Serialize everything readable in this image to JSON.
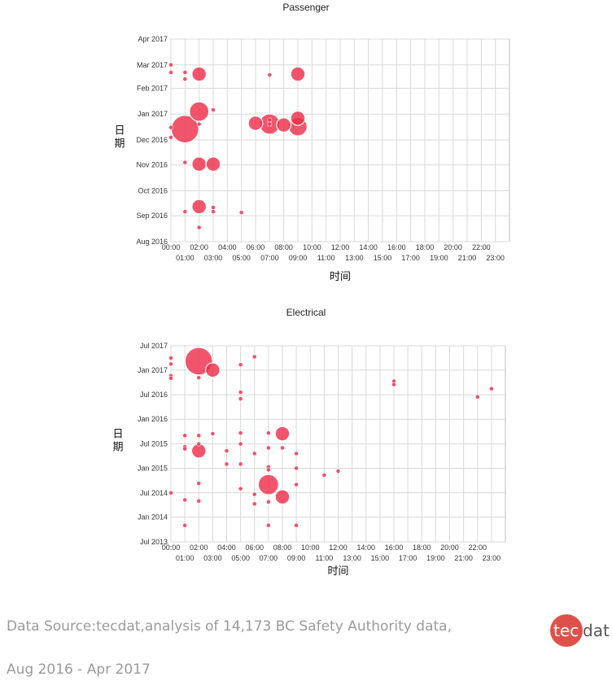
{
  "chart_data": [
    {
      "type": "scatter",
      "title": "Passenger",
      "xlabel": "时间",
      "ylabel": "日期",
      "x_ticks": [
        "00:00",
        "01:00",
        "02:00",
        "03:00",
        "04:00",
        "05:00",
        "06:00",
        "07:00",
        "08:00",
        "09:00",
        "10:00",
        "11:00",
        "12:00",
        "13:00",
        "14:00",
        "15:00",
        "16:00",
        "17:00",
        "18:00",
        "19:00",
        "20:00",
        "21:00",
        "22:00",
        "23:00"
      ],
      "y_ticks": [
        "Aug 2016",
        "Sep 2016",
        "Oct 2016",
        "Nov 2016",
        "Dec 2016",
        "Jan 2017",
        "Feb 2017",
        "Mar 2017",
        "Apr 2017"
      ],
      "xlim": [
        0,
        24
      ],
      "ylim": [
        "Aug 2016",
        "Apr 2017"
      ],
      "grid": true,
      "color": "#ee2f4a",
      "points": [
        {
          "x": 0.0,
          "y": "2017-03-01",
          "size": 1
        },
        {
          "x": 0.0,
          "y": "2017-02-20",
          "size": 1
        },
        {
          "x": 1.0,
          "y": "2017-02-20",
          "size": 1
        },
        {
          "x": 1.0,
          "y": "2017-02-12",
          "size": 1
        },
        {
          "x": 2.0,
          "y": "2017-02-18",
          "size": 6
        },
        {
          "x": 7.0,
          "y": "2017-02-17",
          "size": 1
        },
        {
          "x": 9.0,
          "y": "2017-02-18",
          "size": 6
        },
        {
          "x": 2.0,
          "y": "2017-01-04",
          "size": 11
        },
        {
          "x": 3.0,
          "y": "2017-01-06",
          "size": 1
        },
        {
          "x": 2.0,
          "y": "2016-12-20",
          "size": 1
        },
        {
          "x": 1.0,
          "y": "2016-12-14",
          "size": 22
        },
        {
          "x": 0.0,
          "y": "2016-12-16",
          "size": 1
        },
        {
          "x": 0.0,
          "y": "2016-12-04",
          "size": 1
        },
        {
          "x": 6.0,
          "y": "2016-12-21",
          "size": 6
        },
        {
          "x": 7.0,
          "y": "2016-12-20",
          "size": 12
        },
        {
          "x": 7.0,
          "y": "2016-12-25",
          "size": 1
        },
        {
          "x": 7.0,
          "y": "2016-12-20",
          "size": 1
        },
        {
          "x": 8.0,
          "y": "2016-12-19",
          "size": 6
        },
        {
          "x": 9.0,
          "y": "2016-12-27",
          "size": 6
        },
        {
          "x": 9.0,
          "y": "2016-12-17",
          "size": 10
        },
        {
          "x": 1.0,
          "y": "2016-11-04",
          "size": 1
        },
        {
          "x": 2.0,
          "y": "2016-11-02",
          "size": 6
        },
        {
          "x": 3.0,
          "y": "2016-11-02",
          "size": 6
        },
        {
          "x": 1.0,
          "y": "2016-09-06",
          "size": 1
        },
        {
          "x": 2.0,
          "y": "2016-09-12",
          "size": 6
        },
        {
          "x": 3.0,
          "y": "2016-09-11",
          "size": 1
        },
        {
          "x": 3.0,
          "y": "2016-09-06",
          "size": 1
        },
        {
          "x": 5.0,
          "y": "2016-09-05",
          "size": 1
        },
        {
          "x": 2.0,
          "y": "2016-08-18",
          "size": 1
        }
      ]
    },
    {
      "type": "scatter",
      "title": "Electrical",
      "xlabel": "时间",
      "ylabel": "日期",
      "x_ticks": [
        "00:00",
        "01:00",
        "02:00",
        "03:00",
        "04:00",
        "05:00",
        "06:00",
        "07:00",
        "08:00",
        "09:00",
        "10:00",
        "11:00",
        "12:00",
        "13:00",
        "14:00",
        "15:00",
        "16:00",
        "17:00",
        "18:00",
        "19:00",
        "20:00",
        "21:00",
        "22:00",
        "23:00"
      ],
      "y_ticks": [
        "Jul 2013",
        "Jan 2014",
        "Jul 2014",
        "Jan 2015",
        "Jul 2015",
        "Jan 2016",
        "Jul 2016",
        "Jan 2017",
        "Jul 2017"
      ],
      "xlim": [
        0,
        24
      ],
      "ylim": [
        "Jul 2013",
        "Jul 2017"
      ],
      "grid": true,
      "color": "#ee2f4a",
      "points": [
        {
          "x": 2.0,
          "y": "2017-03-08",
          "size": 22
        },
        {
          "x": 3.0,
          "y": "2017-01-01",
          "size": 6
        },
        {
          "x": 0.0,
          "y": "2017-04-01",
          "size": 1
        },
        {
          "x": 0.0,
          "y": "2017-02-15",
          "size": 1
        },
        {
          "x": 0.0,
          "y": "2016-11-20",
          "size": 1
        },
        {
          "x": 0.0,
          "y": "2016-11-01",
          "size": 1
        },
        {
          "x": 2.0,
          "y": "2016-11-05",
          "size": 1
        },
        {
          "x": 5.0,
          "y": "2017-02-10",
          "size": 1
        },
        {
          "x": 6.0,
          "y": "2017-04-10",
          "size": 1
        },
        {
          "x": 16.0,
          "y": "2016-10-10",
          "size": 1
        },
        {
          "x": 16.0,
          "y": "2016-09-15",
          "size": 1
        },
        {
          "x": 22.0,
          "y": "2016-06-15",
          "size": 1
        },
        {
          "x": 23.0,
          "y": "2016-08-15",
          "size": 1
        },
        {
          "x": 5.0,
          "y": "2016-07-20",
          "size": 1
        },
        {
          "x": 5.0,
          "y": "2016-06-01",
          "size": 1
        },
        {
          "x": 1.0,
          "y": "2015-09-01",
          "size": 1
        },
        {
          "x": 2.0,
          "y": "2015-09-01",
          "size": 1
        },
        {
          "x": 3.0,
          "y": "2015-09-15",
          "size": 1
        },
        {
          "x": 5.0,
          "y": "2015-09-20",
          "size": 1
        },
        {
          "x": 7.0,
          "y": "2015-09-20",
          "size": 1
        },
        {
          "x": 8.0,
          "y": "2015-09-15",
          "size": 6
        },
        {
          "x": 1.0,
          "y": "2015-06-10",
          "size": 1
        },
        {
          "x": 1.0,
          "y": "2015-05-25",
          "size": 1
        },
        {
          "x": 2.0,
          "y": "2015-07-01",
          "size": 1
        },
        {
          "x": 2.0,
          "y": "2015-05-10",
          "size": 6
        },
        {
          "x": 5.0,
          "y": "2015-07-01",
          "size": 1
        },
        {
          "x": 4.0,
          "y": "2015-05-10",
          "size": 1
        },
        {
          "x": 6.0,
          "y": "2015-04-20",
          "size": 1
        },
        {
          "x": 7.0,
          "y": "2015-06-01",
          "size": 1
        },
        {
          "x": 8.0,
          "y": "2015-06-01",
          "size": 1
        },
        {
          "x": 9.0,
          "y": "2015-04-20",
          "size": 1
        },
        {
          "x": 4.0,
          "y": "2015-02-01",
          "size": 1
        },
        {
          "x": 5.0,
          "y": "2015-02-01",
          "size": 1
        },
        {
          "x": 7.0,
          "y": "2015-01-10",
          "size": 1
        },
        {
          "x": 7.0,
          "y": "2014-12-20",
          "size": 1
        },
        {
          "x": 9.0,
          "y": "2015-01-01",
          "size": 1
        },
        {
          "x": 11.0,
          "y": "2014-11-10",
          "size": 1
        },
        {
          "x": 12.0,
          "y": "2014-12-10",
          "size": 1
        },
        {
          "x": 2.0,
          "y": "2014-09-10",
          "size": 1
        },
        {
          "x": 5.0,
          "y": "2014-08-01",
          "size": 1
        },
        {
          "x": 7.0,
          "y": "2014-09-01",
          "size": 12
        },
        {
          "x": 9.0,
          "y": "2014-09-01",
          "size": 1
        },
        {
          "x": 8.0,
          "y": "2014-06-01",
          "size": 6
        },
        {
          "x": 6.0,
          "y": "2014-06-20",
          "size": 1
        },
        {
          "x": 0.0,
          "y": "2014-07-01",
          "size": 1
        },
        {
          "x": 1.0,
          "y": "2014-05-10",
          "size": 1
        },
        {
          "x": 2.0,
          "y": "2014-05-01",
          "size": 1
        },
        {
          "x": 6.0,
          "y": "2014-04-10",
          "size": 1
        },
        {
          "x": 7.0,
          "y": "2014-04-25",
          "size": 1
        },
        {
          "x": 1.0,
          "y": "2013-11-01",
          "size": 1
        },
        {
          "x": 7.0,
          "y": "2013-11-01",
          "size": 1
        },
        {
          "x": 9.0,
          "y": "2013-11-01",
          "size": 1
        }
      ]
    }
  ],
  "footer": {
    "source": "Data Source:tecdat,analysis of 14,173 BC Safety Authority data,",
    "period": "Aug 2016 - Apr 2017",
    "logo_a": "tec",
    "logo_b": "dat"
  }
}
